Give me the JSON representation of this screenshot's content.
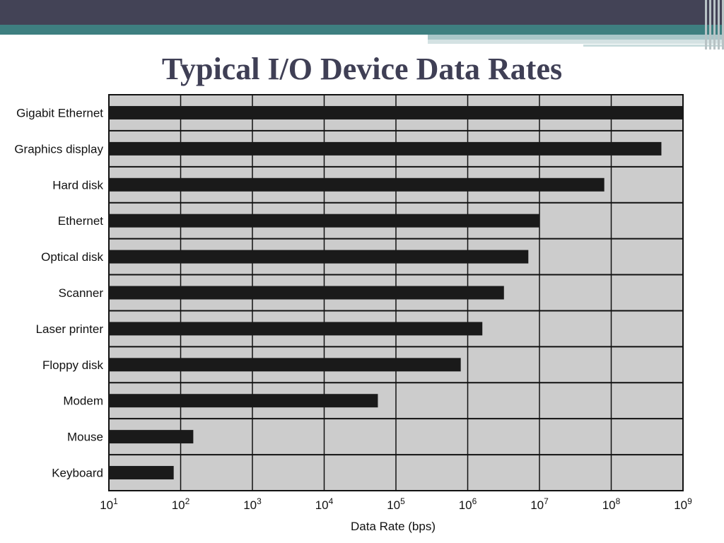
{
  "slide": {
    "title": "Typical I/O Device Data Rates"
  },
  "colors": {
    "header_dark": "#434356",
    "header_teal": "#3e7f80",
    "plot_background": "#cccccc",
    "bar": "#1a1a1a",
    "title_text": "#3f3f55"
  },
  "chart_data": {
    "type": "bar",
    "orientation": "horizontal",
    "x_scale": "log10",
    "xlabel": "Data Rate (bps)",
    "ylabel": "",
    "xlim": [
      10,
      1000000000
    ],
    "x_ticks": [
      "10¹",
      "10²",
      "10³",
      "10⁴",
      "10⁵",
      "10⁶",
      "10⁷",
      "10⁸",
      "10⁹"
    ],
    "x_tick_exponents": [
      "1",
      "2",
      "3",
      "4",
      "5",
      "6",
      "7",
      "8",
      "9"
    ],
    "grid": true,
    "categories": [
      "Gigabit Ethernet",
      "Graphics display",
      "Hard disk",
      "Ethernet",
      "Optical disk",
      "Scanner",
      "Laser printer",
      "Floppy disk",
      "Modem",
      "Mouse",
      "Keyboard"
    ],
    "values": [
      1000000000,
      500000000,
      80000000,
      10000000,
      7000000,
      3200000,
      1600000,
      800000,
      56000,
      150,
      80
    ]
  }
}
